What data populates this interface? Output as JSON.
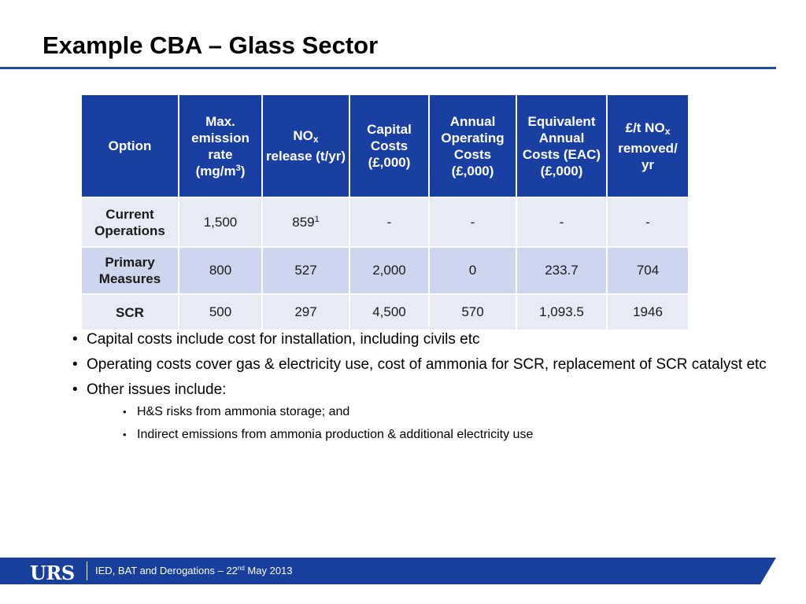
{
  "title": "Example CBA – Glass Sector",
  "table": {
    "headers": {
      "option": "Option",
      "max_emission": "Max. emission rate (mg/m",
      "max_emission_sup": "3",
      "max_emission_close": ")",
      "nox_prefix": "NO",
      "nox_sub": "x",
      "nox_suffix": "release (t/yr)",
      "capital": "Capital Costs (£,000)",
      "annual": "Annual Operating Costs (£,000)",
      "eac": "Equivalent Annual Costs (EAC) (£,000)",
      "per_t_prefix": "£/t NO",
      "per_t_sub": "x",
      "per_t_suffix": "removed/ yr"
    },
    "rows": [
      {
        "option": "Current Operations",
        "max_emission": "1,500",
        "nox": "859",
        "nox_note": "1",
        "capital": "-",
        "annual": "-",
        "eac": "-",
        "per_t": "-"
      },
      {
        "option": "Primary Measures",
        "max_emission": "800",
        "nox": "527",
        "nox_note": "",
        "capital": "2,000",
        "annual": "0",
        "eac": "233.7",
        "per_t": "704"
      },
      {
        "option": "SCR",
        "max_emission": "500",
        "nox": "297",
        "nox_note": "",
        "capital": "4,500",
        "annual": "570",
        "eac": "1,093.5",
        "per_t": "1946"
      }
    ]
  },
  "bullets": {
    "b1": "Capital costs include cost for installation, including civils etc",
    "b2": "Operating costs cover gas & electricity use, cost of ammonia for SCR, replacement of SCR catalyst etc",
    "b3": "Other issues include:",
    "sub1": "H&S risks from ammonia storage; and",
    "sub2": "Indirect emissions from ammonia production & additional electricity use"
  },
  "footer": {
    "logo": "URS",
    "text_before": "IED, BAT and Derogations – 22",
    "text_sup": "nd",
    "text_after": " May 2013"
  },
  "colors": {
    "header_blue": "#1a3fa3",
    "footer_blue": "#173f9b",
    "row_light": "#e8ebf5",
    "row_mid": "#cdd6ee"
  }
}
